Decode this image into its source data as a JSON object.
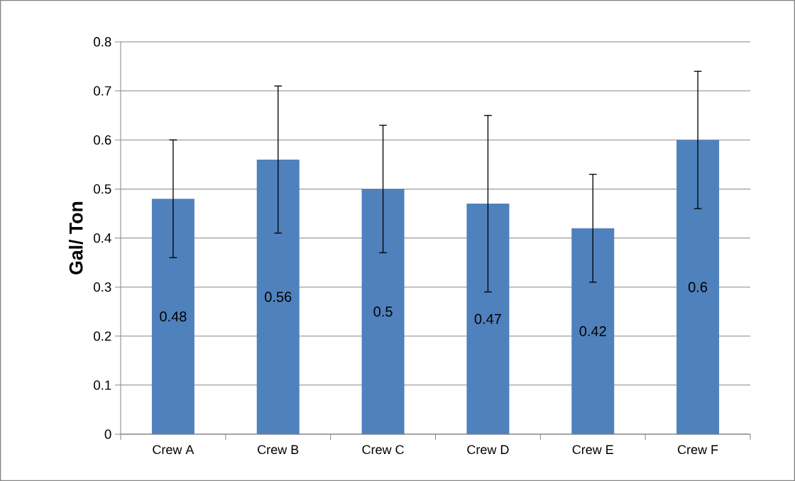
{
  "chart_data": {
    "type": "bar",
    "ylabel": "Gal/ Ton",
    "categories": [
      "Crew A",
      "Crew B",
      "Crew C",
      "Crew D",
      "Crew E",
      "Crew F"
    ],
    "values": [
      0.48,
      0.56,
      0.5,
      0.47,
      0.42,
      0.6
    ],
    "errors": [
      [
        0.36,
        0.6
      ],
      [
        0.41,
        0.71
      ],
      [
        0.37,
        0.63
      ],
      [
        0.29,
        0.65
      ],
      [
        0.31,
        0.53
      ],
      [
        0.46,
        0.74
      ]
    ],
    "color": "#4f81bd",
    "ylim": [
      0,
      0.8
    ],
    "yticks": [
      0,
      0.1,
      0.2,
      0.3,
      0.4,
      0.5,
      0.6,
      0.7,
      0.8
    ],
    "grid": "y",
    "data_labels": true
  }
}
